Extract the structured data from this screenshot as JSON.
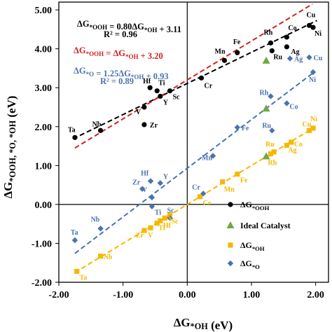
{
  "chart_data": {
    "type": "scatter",
    "xlabel": "ΔG*OH (eV)",
    "ylabel": "ΔG*OOH, *O, *OH (eV)",
    "xlim": [
      -2.0,
      2.2
    ],
    "ylim": [
      -2.0,
      5.2
    ],
    "xticks": [
      -2.0,
      -1.0,
      0.0,
      1.0,
      2.0
    ],
    "yticks": [
      -2.0,
      -1.0,
      0.0,
      1.0,
      2.0,
      3.0,
      4.0,
      5.0
    ],
    "xtick_labels": [
      "-2.00",
      "-1.00",
      "0.00",
      "1.00",
      "2.00"
    ],
    "ytick_labels": [
      "-2.00",
      "-1.00",
      "0.00",
      "1.00",
      "2.00",
      "3.00",
      "4.00",
      "5.00"
    ],
    "grid": false,
    "legend_position": "bottom-right",
    "colors": {
      "ooh": "#000000",
      "ideal": "#70a845",
      "oh": "#f5b800",
      "o": "#4a72b0",
      "fit_ideal": "#d42020"
    },
    "equations": [
      {
        "text": "ΔG*OOH = 0.80ΔG*OH + 3.11",
        "color": "#000000"
      },
      {
        "text": "R² = 0.96",
        "color": "#000000"
      },
      {
        "text": "ΔG*OOH = ΔG*OH + 3.20",
        "color": "#d42020"
      },
      {
        "text": "ΔG*O = 1.25ΔG*OH + 0.93",
        "color": "#4a72b0"
      },
      {
        "text": "R² = 0.89",
        "color": "#4a72b0"
      }
    ],
    "fit_lines": [
      {
        "series": "ooh",
        "slope": 0.8,
        "intercept": 3.11,
        "x_range": [
          -1.78,
          2.02
        ]
      },
      {
        "series": "ideal",
        "slope": 1.0,
        "intercept": 3.2,
        "x_range": [
          -1.75,
          1.95
        ]
      },
      {
        "series": "o",
        "slope": 1.25,
        "intercept": 0.93,
        "x_range": [
          -1.75,
          1.98
        ]
      },
      {
        "series": "oh",
        "slope": 1.0,
        "intercept": 0.0,
        "x_range": [
          -1.75,
          1.98
        ]
      }
    ],
    "series": [
      {
        "name": "ΔG*OOH",
        "key": "ooh",
        "marker": "circle",
        "points": [
          {
            "label": "Ta",
            "x": -1.75,
            "y": 1.72
          },
          {
            "label": "Nb",
            "x": -1.35,
            "y": 1.9
          },
          {
            "label": "Hf",
            "x": -0.58,
            "y": 3.0
          },
          {
            "label": "Ti",
            "x": -0.47,
            "y": 2.92
          },
          {
            "label": "Zr",
            "x": -0.67,
            "y": 2.05
          },
          {
            "label": "V",
            "x": -0.67,
            "y": 2.5
          },
          {
            "label": "Y",
            "x": -0.42,
            "y": 2.78
          },
          {
            "label": "Sc",
            "x": -0.27,
            "y": 2.92
          },
          {
            "label": "Cr",
            "x": 0.22,
            "y": 3.25
          },
          {
            "label": "Mn",
            "x": 0.58,
            "y": 3.7
          },
          {
            "label": "Fe",
            "x": 0.78,
            "y": 3.9
          },
          {
            "label": "Ru",
            "x": 1.32,
            "y": 3.95
          },
          {
            "label": "Rh",
            "x": 1.3,
            "y": 4.15
          },
          {
            "label": "Ag",
            "x": 1.55,
            "y": 4.05
          },
          {
            "label": "Co",
            "x": 1.55,
            "y": 4.3
          },
          {
            "label": "Cu",
            "x": 1.9,
            "y": 4.6
          },
          {
            "label": "Ni",
            "x": 1.96,
            "y": 4.55
          }
        ]
      },
      {
        "name": "Ideal Catalyst",
        "key": "ideal",
        "marker": "triangle",
        "points": [
          {
            "label": "",
            "x": 1.23,
            "y": 3.69
          },
          {
            "label": "",
            "x": 1.23,
            "y": 2.46
          },
          {
            "label": "",
            "x": 1.23,
            "y": 1.23
          }
        ]
      },
      {
        "name": "ΔG*OH",
        "key": "oh",
        "marker": "square",
        "points": [
          {
            "label": "Ta",
            "x": -1.72,
            "y": -1.72
          },
          {
            "label": "Nb",
            "x": -1.35,
            "y": -1.33
          },
          {
            "label": "Zr",
            "x": -0.67,
            "y": -0.67
          },
          {
            "label": "V",
            "x": -0.57,
            "y": -0.6
          },
          {
            "label": "Ti",
            "x": -0.47,
            "y": -0.48
          },
          {
            "label": "Hf",
            "x": -0.42,
            "y": -0.42
          },
          {
            "label": "Y",
            "x": -0.35,
            "y": -0.35
          },
          {
            "label": "Sc",
            "x": -0.27,
            "y": -0.27
          },
          {
            "label": "Cr",
            "x": 0.2,
            "y": 0.2
          },
          {
            "label": "Mn",
            "x": 0.55,
            "y": 0.58
          },
          {
            "label": "Fe",
            "x": 0.78,
            "y": 0.78
          },
          {
            "label": "Rh",
            "x": 1.3,
            "y": 1.3
          },
          {
            "label": "Ru",
            "x": 1.35,
            "y": 1.35
          },
          {
            "label": "Ag",
            "x": 1.55,
            "y": 1.52
          },
          {
            "label": "Co",
            "x": 1.62,
            "y": 1.6
          },
          {
            "label": "Cu",
            "x": 1.9,
            "y": 1.9
          },
          {
            "label": "Ni",
            "x": 1.96,
            "y": 1.96
          }
        ]
      },
      {
        "name": "ΔG*O",
        "key": "o",
        "marker": "diamond",
        "points": [
          {
            "label": "Ta",
            "x": -1.75,
            "y": -0.92
          },
          {
            "label": "Nb",
            "x": -1.35,
            "y": -0.62
          },
          {
            "label": "Zr",
            "x": -0.7,
            "y": 0.4
          },
          {
            "label": "Hf",
            "x": -0.57,
            "y": 0.6
          },
          {
            "label": "Y",
            "x": -0.42,
            "y": 0.55
          },
          {
            "label": "Ti",
            "x": -0.55,
            "y": -0.05
          },
          {
            "label": "V",
            "x": -0.55,
            "y": 0.18
          },
          {
            "label": "Sc",
            "x": -0.27,
            "y": -0.35
          },
          {
            "label": "Cr",
            "x": 0.25,
            "y": 0.28
          },
          {
            "label": "Mn",
            "x": 0.4,
            "y": 1.25
          },
          {
            "label": "Fe",
            "x": 0.78,
            "y": 1.98
          },
          {
            "label": "Rh",
            "x": 1.3,
            "y": 2.78
          },
          {
            "label": "Ru",
            "x": 1.32,
            "y": 1.9
          },
          {
            "label": "Co",
            "x": 1.55,
            "y": 2.6
          },
          {
            "label": "Ag",
            "x": 1.6,
            "y": 3.75
          },
          {
            "label": "Cu",
            "x": 1.9,
            "y": 3.78
          },
          {
            "label": "Ni",
            "x": 1.96,
            "y": 3.4
          }
        ]
      }
    ]
  }
}
